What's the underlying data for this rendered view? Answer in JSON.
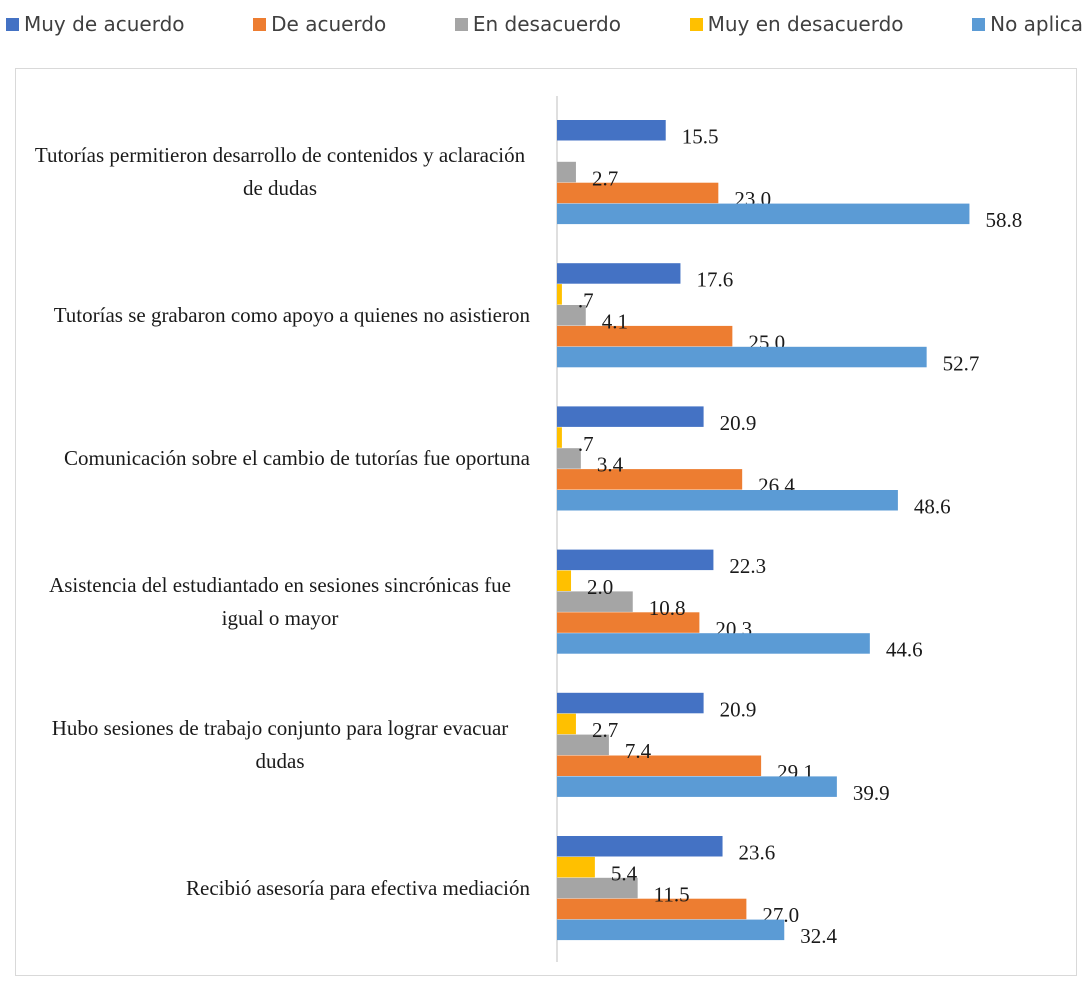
{
  "chart_data": {
    "type": "hbar",
    "categories": [
      "Tutorías permitieron desarrollo de contenidos y aclaración de dudas",
      "Tutorías se grabaron como apoyo a quienes no asistieron",
      "Comunicación sobre el cambio de  tutorías fue oportuna",
      "Asistencia del estudiantado en sesiones sincrónicas fue igual o  mayor",
      "Hubo sesiones de trabajo conjunto para lograr evacuar dudas",
      "Recibió asesoría para  efectiva mediación"
    ],
    "series": [
      {
        "name": "Muy de acuerdo",
        "color": "#4472c4",
        "values": [
          15.5,
          17.6,
          20.9,
          22.3,
          20.9,
          23.6
        ],
        "value_labels": [
          "15.5",
          "17.6",
          "20.9",
          "22.3",
          "20.9",
          "23.6"
        ]
      },
      {
        "name": "De acuerdo",
        "color": "#ed7d31",
        "values": [
          23.0,
          25.0,
          26.4,
          20.3,
          29.1,
          27.0
        ],
        "value_labels": [
          "23.0",
          "25.0",
          "26.4",
          "20.3",
          "29.1",
          "27.0"
        ]
      },
      {
        "name": "En desacuerdo",
        "color": "#a5a5a5",
        "values": [
          2.7,
          4.1,
          3.4,
          10.8,
          7.4,
          11.5
        ],
        "value_labels": [
          "2.7",
          "4.1",
          "3.4",
          "10.8",
          "7.4",
          "11.5"
        ]
      },
      {
        "name": "Muy en desacuerdo",
        "color": "#ffc000",
        "values": [
          null,
          0.7,
          0.7,
          2.0,
          2.7,
          5.4
        ],
        "value_labels": [
          null,
          ".7",
          ".7",
          "2.0",
          "2.7",
          "5.4"
        ]
      },
      {
        "name": "No aplica",
        "color": "#5b9bd5",
        "values": [
          58.8,
          52.7,
          48.6,
          44.6,
          39.9,
          32.4
        ],
        "value_labels": [
          "58.8",
          "52.7",
          "48.6",
          "44.6",
          "39.9",
          "32.4"
        ]
      }
    ],
    "xlim": [
      0,
      70
    ]
  }
}
